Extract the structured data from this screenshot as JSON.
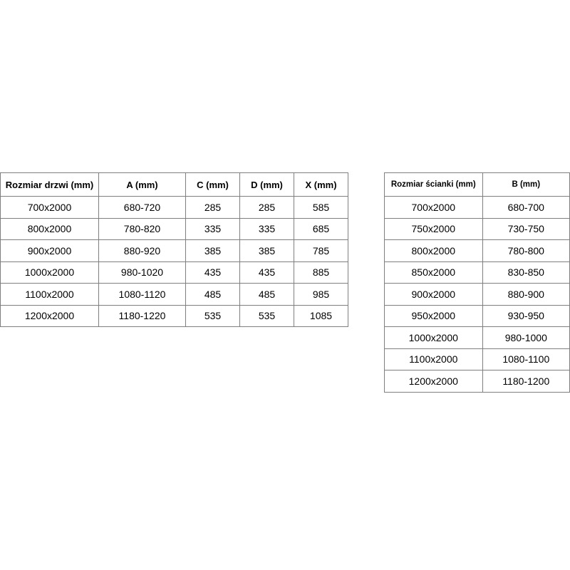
{
  "tables": [
    {
      "header": [
        "Rozmiar drzwi (mm)",
        "A (mm)",
        "C (mm)",
        "D (mm)",
        "X (mm)"
      ],
      "rows": [
        [
          "700x2000",
          "680-720",
          "285",
          "285",
          "585"
        ],
        [
          "800x2000",
          "780-820",
          "335",
          "335",
          "685"
        ],
        [
          "900x2000",
          "880-920",
          "385",
          "385",
          "785"
        ],
        [
          "1000x2000",
          "980-1020",
          "435",
          "435",
          "885"
        ],
        [
          "1100x2000",
          "1080-1120",
          "485",
          "485",
          "985"
        ],
        [
          "1200x2000",
          "1180-1220",
          "535",
          "535",
          "1085"
        ]
      ]
    },
    {
      "header": [
        "Rozmiar ścianki (mm)",
        "B (mm)"
      ],
      "rows": [
        [
          "700x2000",
          "680-700"
        ],
        [
          "750x2000",
          "730-750"
        ],
        [
          "800x2000",
          "780-800"
        ],
        [
          "850x2000",
          "830-850"
        ],
        [
          "900x2000",
          "880-900"
        ],
        [
          "950x2000",
          "930-950"
        ],
        [
          "1000x2000",
          "980-1000"
        ],
        [
          "1100x2000",
          "1080-1100"
        ],
        [
          "1200x2000",
          "1180-1200"
        ]
      ]
    }
  ]
}
